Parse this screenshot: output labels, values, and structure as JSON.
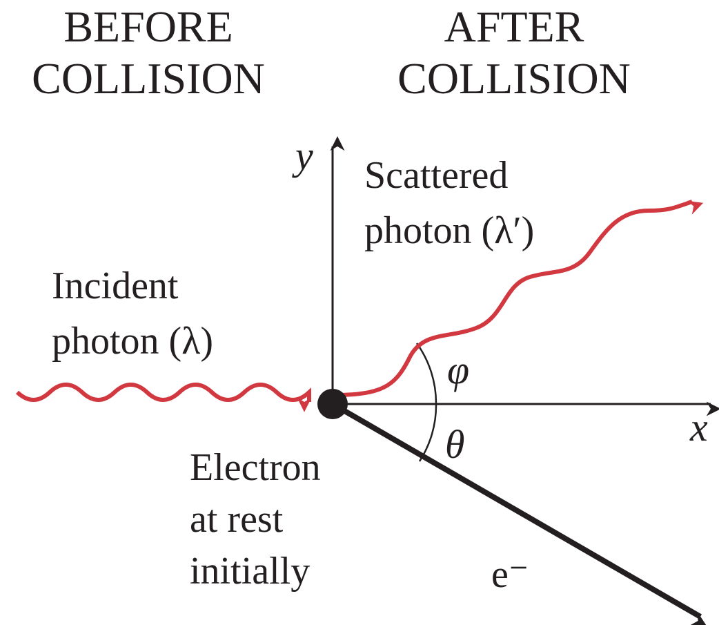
{
  "headings": {
    "before": [
      "BEFORE",
      "COLLISION"
    ],
    "after": [
      "AFTER",
      "COLLISION"
    ]
  },
  "axes": {
    "x": "x",
    "y": "y"
  },
  "scattered": [
    "Scattered",
    "photon (λ′)"
  ],
  "incident": [
    "Incident",
    "photon (λ)"
  ],
  "angles": {
    "phi": "φ",
    "theta": "θ"
  },
  "electron": [
    "Electron",
    "at rest",
    "initially"
  ],
  "recoil": "e⁻"
}
